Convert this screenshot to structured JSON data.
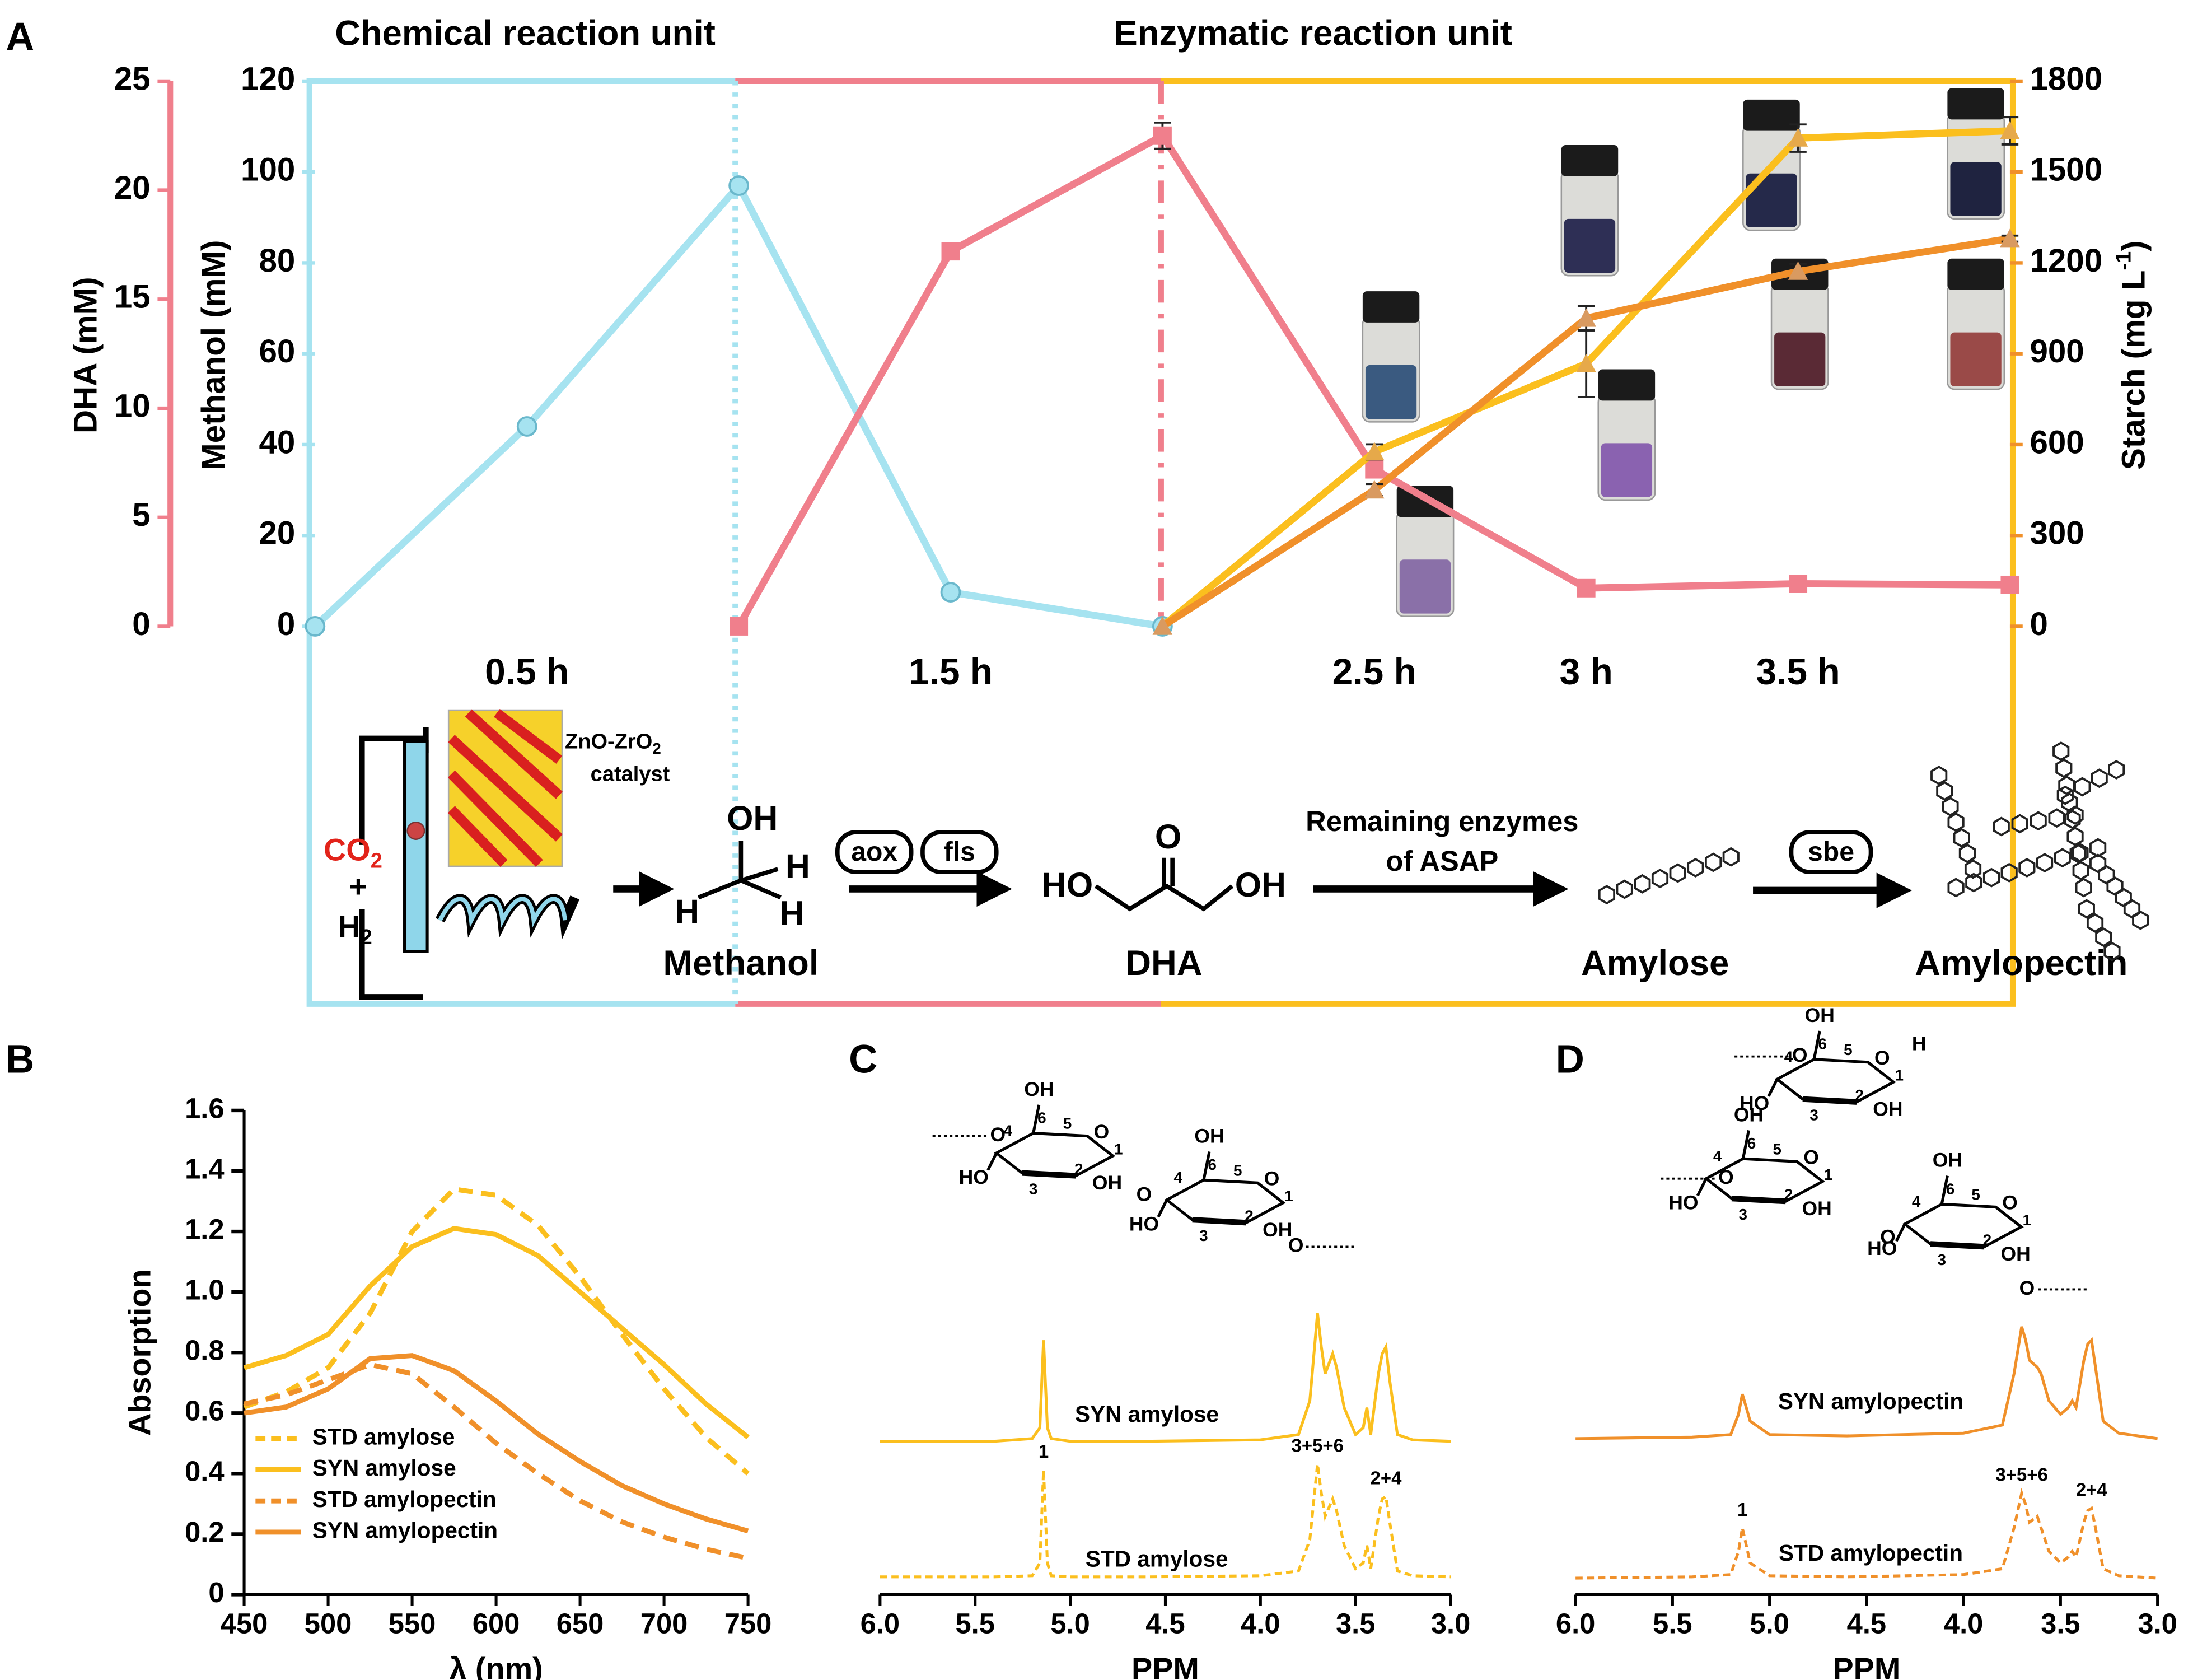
{
  "panels": [
    "A",
    "B",
    "C",
    "D"
  ],
  "scheme": {
    "catalyst": "ZnO-ZrO",
    "catalyst_sub": "2",
    "catalyst2": "catalyst",
    "co2": "CO",
    "co2_sub": "2",
    "plus": "+",
    "h2": "H",
    "h2_sub": "2",
    "methanol_atoms": [
      "OH",
      "H",
      "H",
      "H"
    ],
    "methanol": "Methanol",
    "enzymes1": [
      "aox",
      "fls"
    ],
    "dha_atoms": [
      "HO",
      "O",
      "OH"
    ],
    "dha": "DHA",
    "remaining": [
      "Remaining enzymes",
      "of ASAP"
    ],
    "amylose": "Amylose",
    "sbe": "sbe",
    "amylopectin": "Amylopectin"
  },
  "chart_data": [
    {
      "type": "line",
      "unit_labels": [
        "Chemical reaction unit",
        "Enzymatic reaction unit"
      ],
      "categories": [
        null,
        "0.5 h",
        null,
        "1.5 h",
        null,
        "2.5 h",
        "3 h",
        "3.5 h",
        null
      ],
      "ylabel": "Methanol (mM)",
      "ylim": [
        0,
        120
      ],
      "yticks": [
        0,
        20,
        40,
        60,
        80,
        100,
        120
      ],
      "y2label": [
        "Starch (mg L",
        "-1",
        ")"
      ],
      "y2lim": [
        0,
        1800
      ],
      "y2ticks": [
        0,
        300,
        600,
        900,
        1200,
        1500,
        1800
      ],
      "y3label": "DHA (mM)",
      "y3lim": [
        0,
        25
      ],
      "y3ticks": [
        0,
        5,
        10,
        15,
        20,
        25
      ],
      "series": [
        {
          "color": "#a6e3f0",
          "marker": "circle",
          "axis": "y",
          "values": [
            0,
            44,
            97,
            7.5,
            0,
            null,
            null,
            null,
            null
          ],
          "errors": [
            null,
            null,
            1.2,
            1,
            null,
            null,
            null,
            null,
            null
          ]
        },
        {
          "color": "#f07f8c",
          "marker": "square",
          "axis": "y3",
          "values": [
            null,
            null,
            0,
            17.2,
            22.5,
            7.2,
            1.75,
            1.95,
            1.9
          ],
          "errors": [
            null,
            null,
            null,
            0.3,
            0.6,
            0.3,
            0.1,
            0.1,
            0.1
          ]
        },
        {
          "color": "#fbbf1e",
          "marker": "triangle",
          "axis": "y2",
          "values": [
            null,
            null,
            null,
            null,
            0,
            576,
            867,
            1612,
            1636
          ],
          "errors": [
            null,
            null,
            null,
            null,
            null,
            25,
            110,
            45,
            45
          ]
        },
        {
          "color": "#f0902a",
          "marker": "triangle",
          "axis": "y2",
          "values": [
            null,
            null,
            null,
            null,
            0,
            450,
            1017,
            1172,
            1280
          ],
          "errors": [
            null,
            null,
            null,
            null,
            null,
            20,
            40,
            25,
            10
          ]
        }
      ]
    },
    {
      "type": "line",
      "xlabel": "λ (nm)",
      "ylabel": "Absorption",
      "xlim": [
        450,
        750
      ],
      "xticks": [
        450,
        500,
        550,
        600,
        650,
        700,
        750
      ],
      "ylim": [
        0,
        1.6
      ],
      "yticks": [
        0,
        0.2,
        0.4,
        0.6,
        0.8,
        {
          "value": 1,
          "label": "1.0"
        },
        1.2,
        1.4,
        1.6
      ],
      "legend": "lower left",
      "x": [
        450,
        475,
        500,
        525,
        550,
        575,
        600,
        625,
        650,
        675,
        700,
        725,
        750
      ],
      "series": [
        {
          "name": "STD amylose",
          "color": "#fbbf1e",
          "dash": true,
          "values": [
            0.62,
            0.67,
            0.75,
            0.93,
            1.2,
            1.34,
            1.32,
            1.22,
            1.05,
            0.86,
            0.68,
            0.52,
            0.4
          ]
        },
        {
          "name": "SYN amylose",
          "color": "#fbbf1e",
          "dash": false,
          "values": [
            0.75,
            0.79,
            0.86,
            1.02,
            1.15,
            1.21,
            1.19,
            1.12,
            1.0,
            0.88,
            0.76,
            0.63,
            0.52
          ]
        },
        {
          "name": "STD amylopectin",
          "color": "#f0902a",
          "dash": true,
          "values": [
            0.63,
            0.66,
            0.71,
            0.76,
            0.73,
            0.62,
            0.5,
            0.4,
            0.31,
            0.24,
            0.19,
            0.15,
            0.12
          ]
        },
        {
          "name": "SYN amylopectin",
          "color": "#f0902a",
          "dash": false,
          "values": [
            0.6,
            0.62,
            0.68,
            0.78,
            0.79,
            0.74,
            0.64,
            0.53,
            0.44,
            0.36,
            0.3,
            0.25,
            0.21
          ]
        }
      ]
    },
    {
      "type": "spectrum",
      "xlabel": "PPM",
      "xlim": [
        6,
        3
      ],
      "xticks": [
        {
          "value": 6,
          "label": "6.0"
        },
        5.5,
        {
          "value": 5,
          "label": "5.0"
        },
        4.5,
        {
          "value": 4,
          "label": "4.0"
        },
        3.5,
        {
          "value": 3,
          "label": "3.0"
        }
      ],
      "x": [
        6.0,
        5.4,
        5.2,
        5.16,
        5.14,
        5.12,
        5.1,
        5.0,
        4.6,
        4.0,
        3.8,
        3.74,
        3.7,
        3.68,
        3.66,
        3.62,
        3.6,
        3.56,
        3.5,
        3.46,
        3.44,
        3.42,
        3.38,
        3.36,
        3.34,
        3.32,
        3.28,
        3.2,
        3.0
      ],
      "series": [
        {
          "name": "SYN amylose",
          "color": "#fbbf1e",
          "dash": false,
          "values": [
            0,
            0,
            0.02,
            0.1,
            0.75,
            0.1,
            0.02,
            0,
            0,
            0.01,
            0.05,
            0.3,
            0.95,
            0.7,
            0.5,
            0.65,
            0.55,
            0.25,
            0.05,
            0.1,
            0.25,
            0.05,
            0.5,
            0.65,
            0.7,
            0.45,
            0.05,
            0.01,
            0
          ]
        },
        {
          "name": "STD amylose",
          "color": "#fbbf1e",
          "dash": true,
          "values": [
            0.03,
            0.03,
            0.04,
            0.15,
            0.95,
            0.15,
            0.04,
            0.03,
            0.03,
            0.04,
            0.08,
            0.35,
            1.0,
            0.75,
            0.55,
            0.7,
            0.6,
            0.3,
            0.1,
            0.15,
            0.3,
            0.1,
            0.55,
            0.7,
            0.72,
            0.5,
            0.08,
            0.04,
            0.03
          ]
        }
      ],
      "annotations": [
        {
          "text": "1",
          "x": 5.14
        },
        {
          "text": "3+5+6",
          "x": 3.7
        },
        {
          "text": "2+4",
          "x": 3.34
        }
      ],
      "structure": {
        "rings": [
          [
            "OH",
            "6",
            "4",
            "5",
            "O",
            "HO",
            "3",
            "2",
            "OH",
            "1"
          ],
          [
            "OH",
            "6",
            "4",
            "5",
            "O",
            "HO",
            "3",
            "2",
            "OH",
            "1"
          ]
        ],
        "links": [
          "O",
          "O",
          "O"
        ]
      }
    },
    {
      "type": "spectrum",
      "xlabel": "PPM",
      "xlim": [
        6,
        3
      ],
      "xticks": [
        {
          "value": 6,
          "label": "6.0"
        },
        5.5,
        {
          "value": 5,
          "label": "5.0"
        },
        4.5,
        {
          "value": 4,
          "label": "4.0"
        },
        3.5,
        {
          "value": 3,
          "label": "3.0"
        }
      ],
      "x": [
        6.0,
        5.4,
        5.2,
        5.16,
        5.14,
        5.12,
        5.1,
        5.0,
        4.6,
        4.0,
        3.8,
        3.74,
        3.7,
        3.68,
        3.66,
        3.62,
        3.6,
        3.56,
        3.5,
        3.46,
        3.44,
        3.42,
        3.38,
        3.36,
        3.34,
        3.32,
        3.28,
        3.2,
        3.0
      ],
      "series": [
        {
          "name": "SYN amylopectin",
          "color": "#f0902a",
          "dash": false,
          "values": [
            0.02,
            0.03,
            0.05,
            0.2,
            0.35,
            0.25,
            0.15,
            0.05,
            0.04,
            0.06,
            0.12,
            0.5,
            0.85,
            0.75,
            0.6,
            0.55,
            0.5,
            0.3,
            0.2,
            0.25,
            0.3,
            0.25,
            0.6,
            0.72,
            0.75,
            0.55,
            0.15,
            0.06,
            0.02
          ]
        },
        {
          "name": "STD amylopectin",
          "color": "#f0902a",
          "dash": true,
          "values": [
            0.02,
            0.03,
            0.05,
            0.25,
            0.45,
            0.3,
            0.15,
            0.04,
            0.03,
            0.05,
            0.1,
            0.45,
            0.75,
            0.65,
            0.5,
            0.55,
            0.45,
            0.25,
            0.15,
            0.2,
            0.25,
            0.2,
            0.5,
            0.6,
            0.62,
            0.45,
            0.1,
            0.04,
            0.02
          ]
        }
      ],
      "annotations": [
        {
          "text": "1",
          "x": 5.14
        },
        {
          "text": "3+5+6",
          "x": 3.7
        },
        {
          "text": "2+4",
          "x": 3.34
        }
      ],
      "structure": {
        "rings": [
          [
            "OH",
            "6",
            "4",
            "5",
            "O",
            "HO",
            "3",
            "2",
            "OH",
            "1"
          ],
          [
            "OH",
            "6",
            "4",
            "5",
            "O",
            "HO",
            "3",
            "2",
            "OH",
            "1"
          ],
          [
            "OH",
            "6",
            "4",
            "5",
            "O",
            "HO",
            "3",
            "2",
            "OH",
            "1"
          ]
        ],
        "links": [
          "O",
          "O",
          "O",
          "O",
          "H"
        ]
      }
    }
  ]
}
